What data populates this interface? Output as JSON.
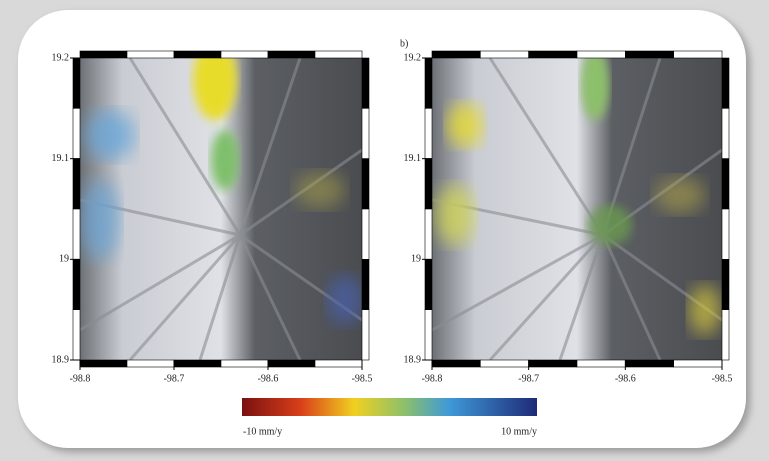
{
  "panel_label": "b)",
  "panels": [
    {
      "yticks": [
        19.2,
        19.1,
        19,
        18.9
      ],
      "xticks": [
        -98.8,
        -98.7,
        -98.6,
        -98.5
      ]
    },
    {
      "yticks": [
        19.2,
        19.1,
        19,
        18.9
      ],
      "xticks": [
        -98.8,
        -98.7,
        -98.6,
        -98.5
      ]
    }
  ],
  "colorbar": {
    "min_label": "-10 mm/y",
    "max_label": "10 mm/y"
  }
}
